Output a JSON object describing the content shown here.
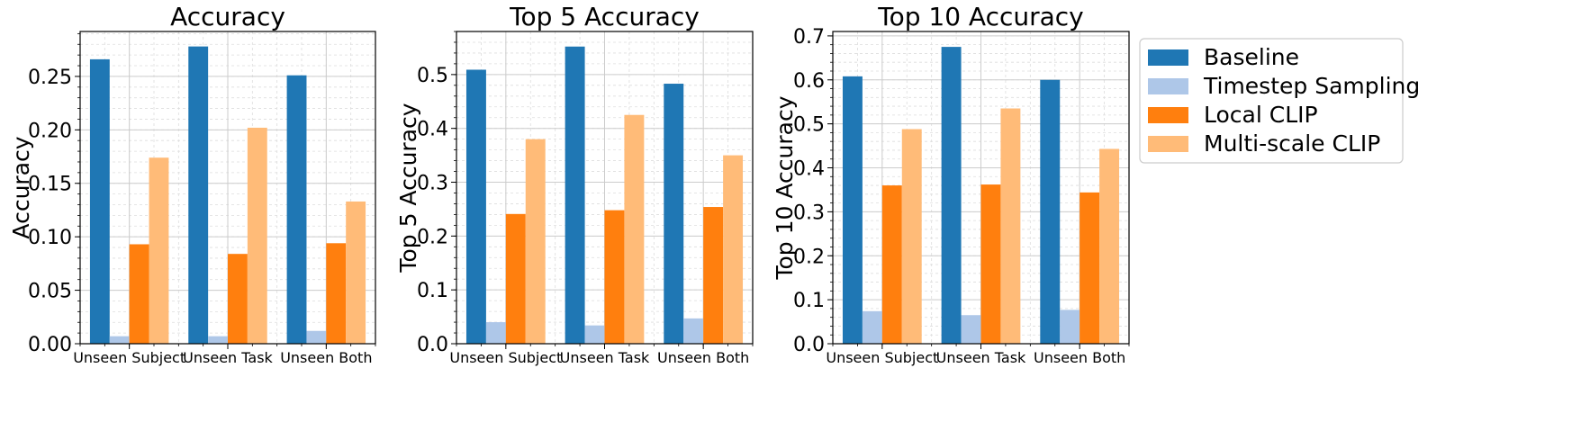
{
  "legend": {
    "entries": [
      {
        "label": "Baseline",
        "color": "#1f77b4"
      },
      {
        "label": "Timestep Sampling",
        "color": "#aec7e8"
      },
      {
        "label": "Local CLIP",
        "color": "#ff7f0e"
      },
      {
        "label": "Multi-scale CLIP",
        "color": "#ffbb78"
      }
    ],
    "placement": "outside-right"
  },
  "chart_data": [
    {
      "type": "bar",
      "title": "Accuracy",
      "ylabel": "Accuracy",
      "categories": [
        "Unseen Subject",
        "Unseen Task",
        "Unseen Both"
      ],
      "ylim": [
        0,
        0.292
      ],
      "yticks": [
        0.0,
        0.05,
        0.1,
        0.15,
        0.2,
        0.25
      ],
      "yticklabels": [
        "0.00",
        "0.05",
        "0.10",
        "0.15",
        "0.20",
        "0.25"
      ],
      "minor_step": 0.01,
      "grid": true,
      "series": [
        {
          "name": "Baseline",
          "values": [
            0.266,
            0.278,
            0.251
          ]
        },
        {
          "name": "Timestep Sampling",
          "values": [
            0.007,
            0.007,
            0.012
          ]
        },
        {
          "name": "Local CLIP",
          "values": [
            0.093,
            0.084,
            0.094
          ]
        },
        {
          "name": "Multi-scale CLIP",
          "values": [
            0.174,
            0.202,
            0.133
          ]
        }
      ]
    },
    {
      "type": "bar",
      "title": "Top 5 Accuracy",
      "ylabel": "Top 5 Accuracy",
      "categories": [
        "Unseen Subject",
        "Unseen Task",
        "Unseen Both"
      ],
      "ylim": [
        0,
        0.58
      ],
      "yticks": [
        0.0,
        0.1,
        0.2,
        0.3,
        0.4,
        0.5
      ],
      "yticklabels": [
        "0.0",
        "0.1",
        "0.2",
        "0.3",
        "0.4",
        "0.5"
      ],
      "minor_step": 0.02,
      "grid": true,
      "series": [
        {
          "name": "Baseline",
          "values": [
            0.509,
            0.552,
            0.483
          ]
        },
        {
          "name": "Timestep Sampling",
          "values": [
            0.04,
            0.034,
            0.047
          ]
        },
        {
          "name": "Local CLIP",
          "values": [
            0.241,
            0.248,
            0.254
          ]
        },
        {
          "name": "Multi-scale CLIP",
          "values": [
            0.38,
            0.425,
            0.35
          ]
        }
      ]
    },
    {
      "type": "bar",
      "title": "Top 10 Accuracy",
      "ylabel": "Top 10 Accuracy",
      "categories": [
        "Unseen Subject",
        "Unseen Task",
        "Unseen Both"
      ],
      "ylim": [
        0,
        0.71
      ],
      "yticks": [
        0.0,
        0.1,
        0.2,
        0.3,
        0.4,
        0.5,
        0.6,
        0.7
      ],
      "yticklabels": [
        "0.0",
        "0.1",
        "0.2",
        "0.3",
        "0.4",
        "0.5",
        "0.6",
        "0.7"
      ],
      "minor_step": 0.02,
      "grid": true,
      "series": [
        {
          "name": "Baseline",
          "values": [
            0.608,
            0.675,
            0.6
          ]
        },
        {
          "name": "Timestep Sampling",
          "values": [
            0.074,
            0.065,
            0.077
          ]
        },
        {
          "name": "Local CLIP",
          "values": [
            0.36,
            0.362,
            0.344
          ]
        },
        {
          "name": "Multi-scale CLIP",
          "values": [
            0.488,
            0.535,
            0.443
          ]
        }
      ]
    }
  ]
}
